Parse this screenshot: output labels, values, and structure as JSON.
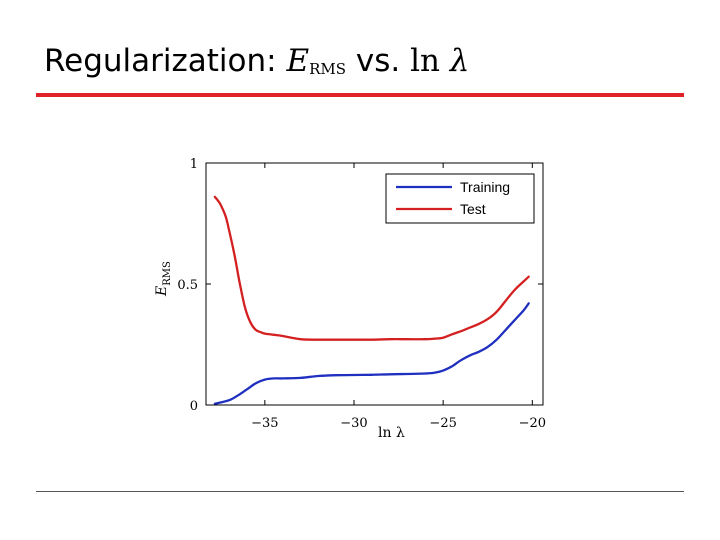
{
  "slide": {
    "title_text": "Regularization:",
    "title_math_var": "E",
    "title_math_sub": "RMS",
    "title_vs": "vs.",
    "title_math_ln": "ln",
    "title_math_lambda": "λ"
  },
  "colors": {
    "accent_rule": "#e0202a",
    "training": "#1f2fbf",
    "test": "#d42020"
  },
  "chart_data": {
    "type": "line",
    "xlabel": "ln λ",
    "ylabel_var": "E",
    "ylabel_sub": "RMS",
    "xlim": [
      -38.3,
      -19.4
    ],
    "ylim": [
      0,
      1
    ],
    "xticks": [
      -35,
      -30,
      -25,
      -20
    ],
    "xtick_labels": [
      "−35",
      "−30",
      "−25",
      "−20"
    ],
    "yticks": [
      0,
      0.5,
      1
    ],
    "ytick_labels": [
      "0",
      "0.5",
      "1"
    ],
    "grid": false,
    "legend_position": "top-right",
    "series": [
      {
        "name": "Training",
        "color": "#1f2fbf",
        "x": [
          -37.8,
          -37.0,
          -36.5,
          -36.0,
          -35.5,
          -35.0,
          -34.5,
          -34.0,
          -33.0,
          -32.0,
          -31.0,
          -30.0,
          -29.0,
          -28.0,
          -27.0,
          -26.0,
          -25.5,
          -25.0,
          -24.5,
          -24.0,
          -23.5,
          -23.0,
          -22.5,
          -22.0,
          -21.5,
          -21.0,
          -20.5,
          -20.2
        ],
        "y": [
          0.005,
          0.02,
          0.04,
          0.065,
          0.09,
          0.105,
          0.11,
          0.11,
          0.112,
          0.12,
          0.123,
          0.124,
          0.125,
          0.127,
          0.128,
          0.13,
          0.133,
          0.142,
          0.16,
          0.185,
          0.205,
          0.22,
          0.24,
          0.27,
          0.31,
          0.35,
          0.39,
          0.42
        ]
      },
      {
        "name": "Test",
        "color": "#d42020",
        "x": [
          -37.8,
          -37.5,
          -37.2,
          -37.0,
          -36.7,
          -36.4,
          -36.1,
          -35.8,
          -35.5,
          -35.2,
          -35.0,
          -34.5,
          -34.0,
          -33.0,
          -32.0,
          -31.0,
          -30.0,
          -29.0,
          -28.0,
          -27.0,
          -26.0,
          -25.5,
          -25.0,
          -24.5,
          -24.0,
          -23.5,
          -23.0,
          -22.5,
          -22.0,
          -21.5,
          -21.0,
          -20.5,
          -20.2
        ],
        "y": [
          0.86,
          0.83,
          0.78,
          0.72,
          0.62,
          0.5,
          0.4,
          0.34,
          0.31,
          0.3,
          0.295,
          0.29,
          0.285,
          0.272,
          0.27,
          0.27,
          0.27,
          0.27,
          0.272,
          0.272,
          0.272,
          0.274,
          0.278,
          0.292,
          0.305,
          0.32,
          0.335,
          0.355,
          0.385,
          0.43,
          0.475,
          0.51,
          0.53
        ]
      }
    ]
  }
}
